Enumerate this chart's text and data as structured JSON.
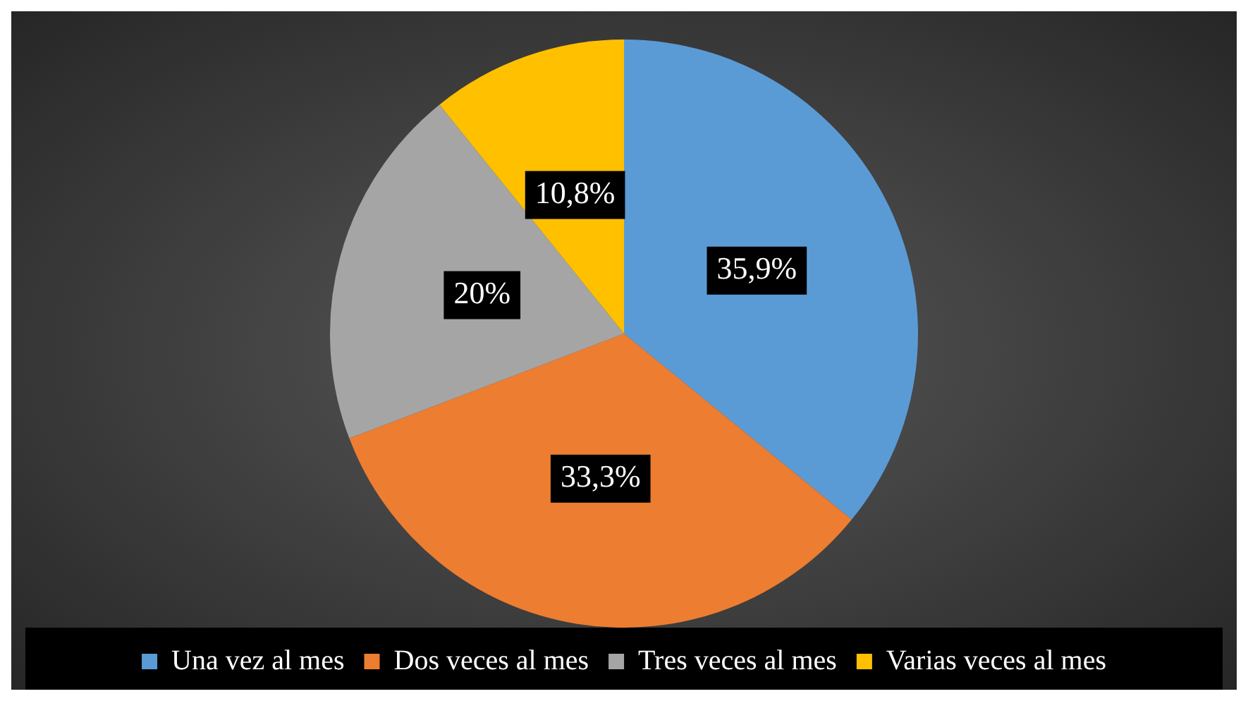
{
  "chart_data": {
    "type": "pie",
    "categories": [
      "Una vez al mes",
      "Dos veces al mes",
      "Tres veces al mes",
      "Varias veces al mes"
    ],
    "values": [
      35.9,
      33.3,
      20,
      10.8
    ],
    "value_labels": [
      "35,9%",
      "33,3%",
      "20%",
      "10,8%"
    ],
    "colors": [
      "#5b9bd5",
      "#ed7d31",
      "#a5a5a5",
      "#ffc000"
    ],
    "legend": "bottom"
  }
}
